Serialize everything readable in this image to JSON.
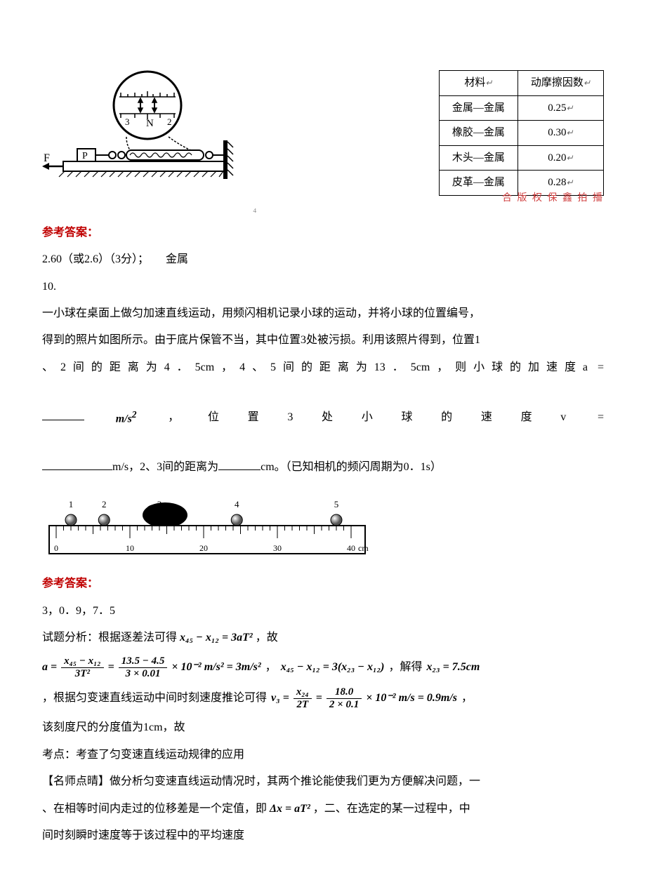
{
  "table": {
    "headers": [
      "材料",
      "动摩擦因数"
    ],
    "rows": [
      [
        "金属—金属",
        "0.25"
      ],
      [
        "橡胶—金属",
        "0.30"
      ],
      [
        "木头—金属",
        "0.20"
      ],
      [
        "皮革—金属",
        "0.28"
      ]
    ],
    "symbols": [
      "↵",
      "↵"
    ],
    "border_color": "#000000",
    "bg_color": "#ffffff"
  },
  "answer_label": "参考答案：",
  "ans1_text": "2.60（或2.6）（3分）；　　金属",
  "q10_num": "10.",
  "q10_line1": "一小球在桌面上做匀加速直线运动，用频闪相机记录小球的运动，并将小球的位置编号，",
  "q10_line2a": "得到的照片如图所示。由于底片保管不当，其中位置3处被污损。利用该照片得到，位置1",
  "q10_line2b_pre": "、2间的距离为4．5cm，4、5间的距离为13．5cm，则小球的加速度a",
  "q10_line2b_eq": "=",
  "q10_unit1": "m/s",
  "q10_sup2": "2",
  "q10_line3a": "，位置3处小球的速度v",
  "q10_line3b": "=",
  "q10_line4a": "m/s，2、3间的距离为",
  "q10_line4b": "cm。（已知相机的频闪周期为0．1s）",
  "ruler": {
    "width_cm": 40,
    "labels": [
      "1",
      "2",
      "3",
      "4",
      "5"
    ],
    "ball_x": [
      2.0,
      6.5,
      14,
      24.5,
      38.0
    ],
    "ticks": [
      0,
      10,
      20,
      30,
      40
    ],
    "unit": "cm"
  },
  "ans2_text": "3，0．9，7．5",
  "analysis_pre": "试题分析：根据逐差法可得 ",
  "eq1": "x₄₅ − x₁₂ = 3aT²",
  "analysis_post": "，故",
  "eq2_lhs_num": "x₄₅ − x₁₂",
  "eq2_lhs_den": "3T²",
  "eq2_mid_num": "13.5 − 4.5",
  "eq2_mid_den": "3 × 0.01",
  "eq2_tail": "× 10⁻² m/s² = 3m/s²",
  "eq3": "x₄₅ − x₁₂ = 3(x₂₃ − x₁₂)",
  "eq3_tail_pre": "，解得 ",
  "eq3_tail": "x₂₃ = 7.5cm",
  "mid_text": "，根据匀变速直线运动中间时刻速度推论可得 ",
  "eq4_v3": "v₃ =",
  "eq4_num1": "x₂₄",
  "eq4_den1": "2T",
  "eq4_num2": "18.0",
  "eq4_den2": "2 × 0.1",
  "eq4_tail": "× 10⁻² m/s = 0.9m/s",
  "scale_text": "该刻度尺的分度值为1cm，故",
  "kaodian": "考点：考查了匀变速直线运动规律的应用",
  "dianping1": "【名师点晴】做分析匀变速直线运动情况时，其两个推论能使我们更为方便解决问题，一",
  "dianping2_pre": "、在相等时间内走过的位移差是一个定值，即 ",
  "dianping2_eq": "Δx = aT²",
  "dianping2_post": "，二、在选定的某一过程中，中",
  "dianping3": "间时刻瞬时速度等于该过程中的平均速度",
  "diagram_labels": {
    "P": "P",
    "F": "F",
    "N": "N",
    "n3": "3",
    "n2": "2"
  },
  "watermark": "合 版 权 保 鑫 拍 播"
}
